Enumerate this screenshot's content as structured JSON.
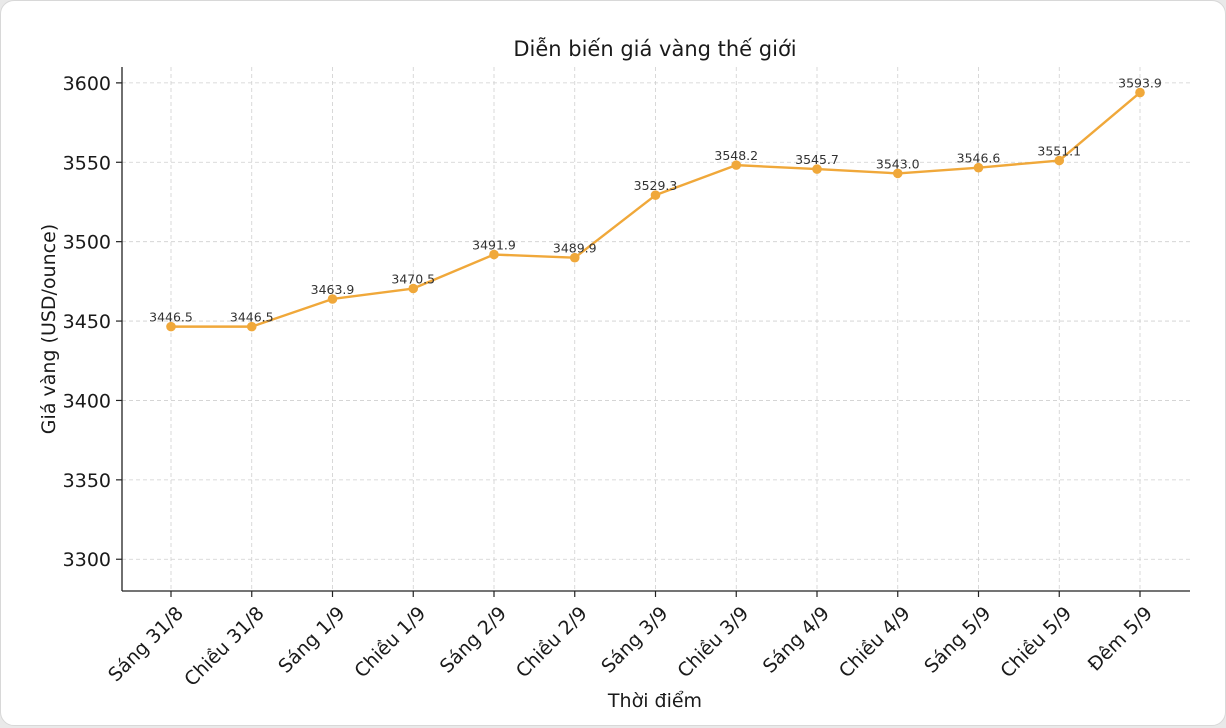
{
  "chart_data": {
    "type": "line",
    "title": "Diễn biến giá vàng thế giới",
    "xlabel": "Thời điểm",
    "ylabel": "Giá vàng (USD/ounce)",
    "categories": [
      "Sáng 31/8",
      "Chiều 31/8",
      "Sáng 1/9",
      "Chiều 1/9",
      "Sáng 2/9",
      "Chiều 2/9",
      "Sáng 3/9",
      "Chiều 3/9",
      "Sáng 4/9",
      "Chiều 4/9",
      "Sáng 5/9",
      "Chiều 5/9",
      "Đêm 5/9"
    ],
    "values": [
      3446.5,
      3446.5,
      3463.9,
      3470.5,
      3491.9,
      3489.9,
      3529.3,
      3548.2,
      3545.7,
      3543.0,
      3546.6,
      3551.1,
      3593.9
    ],
    "data_labels": [
      "3446.5",
      "3446.5",
      "3463.9",
      "3470.5",
      "3491.9",
      "3489.9",
      "3529.3",
      "3548.2",
      "3545.7",
      "3543.0",
      "3546.6",
      "3551.1",
      "3593.9"
    ],
    "yticks": [
      3300,
      3350,
      3400,
      3450,
      3500,
      3550,
      3600
    ],
    "ylim": [
      3280,
      3610
    ],
    "grid": true,
    "line_color": "#f0a83a"
  }
}
